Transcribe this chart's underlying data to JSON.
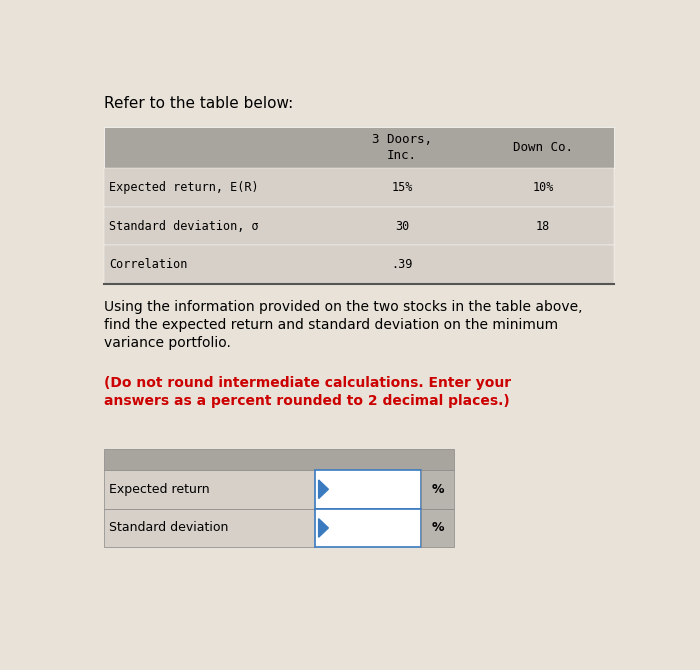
{
  "title": "Refer to the table below:",
  "page_bg": "#e8e2d8",
  "table1_headers": [
    "3 Doors,\nInc.",
    "Down Co."
  ],
  "table1_rows": [
    [
      "Expected return, E(R)",
      "15%",
      "10%"
    ],
    [
      "Standard deviation, σ",
      "30",
      "18"
    ],
    [
      "Correlation",
      ".39",
      ""
    ]
  ],
  "question_text_normal": "Using the information provided on the two stocks in the table above,\nfind the expected return and standard deviation on the minimum\nvariance portfolio. ",
  "question_text_bold": "(Do not round intermediate calculations. Enter your\nanswers as a percent rounded to 2 decimal places.)",
  "table2_rows": [
    [
      "Expected return",
      "%"
    ],
    [
      "Standard deviation",
      "%"
    ]
  ],
  "header_bg": "#a8a49e",
  "cell_bg": "#d6d0c8",
  "input_border": "#3a7abf",
  "pct_bg": "#b8b4ae"
}
